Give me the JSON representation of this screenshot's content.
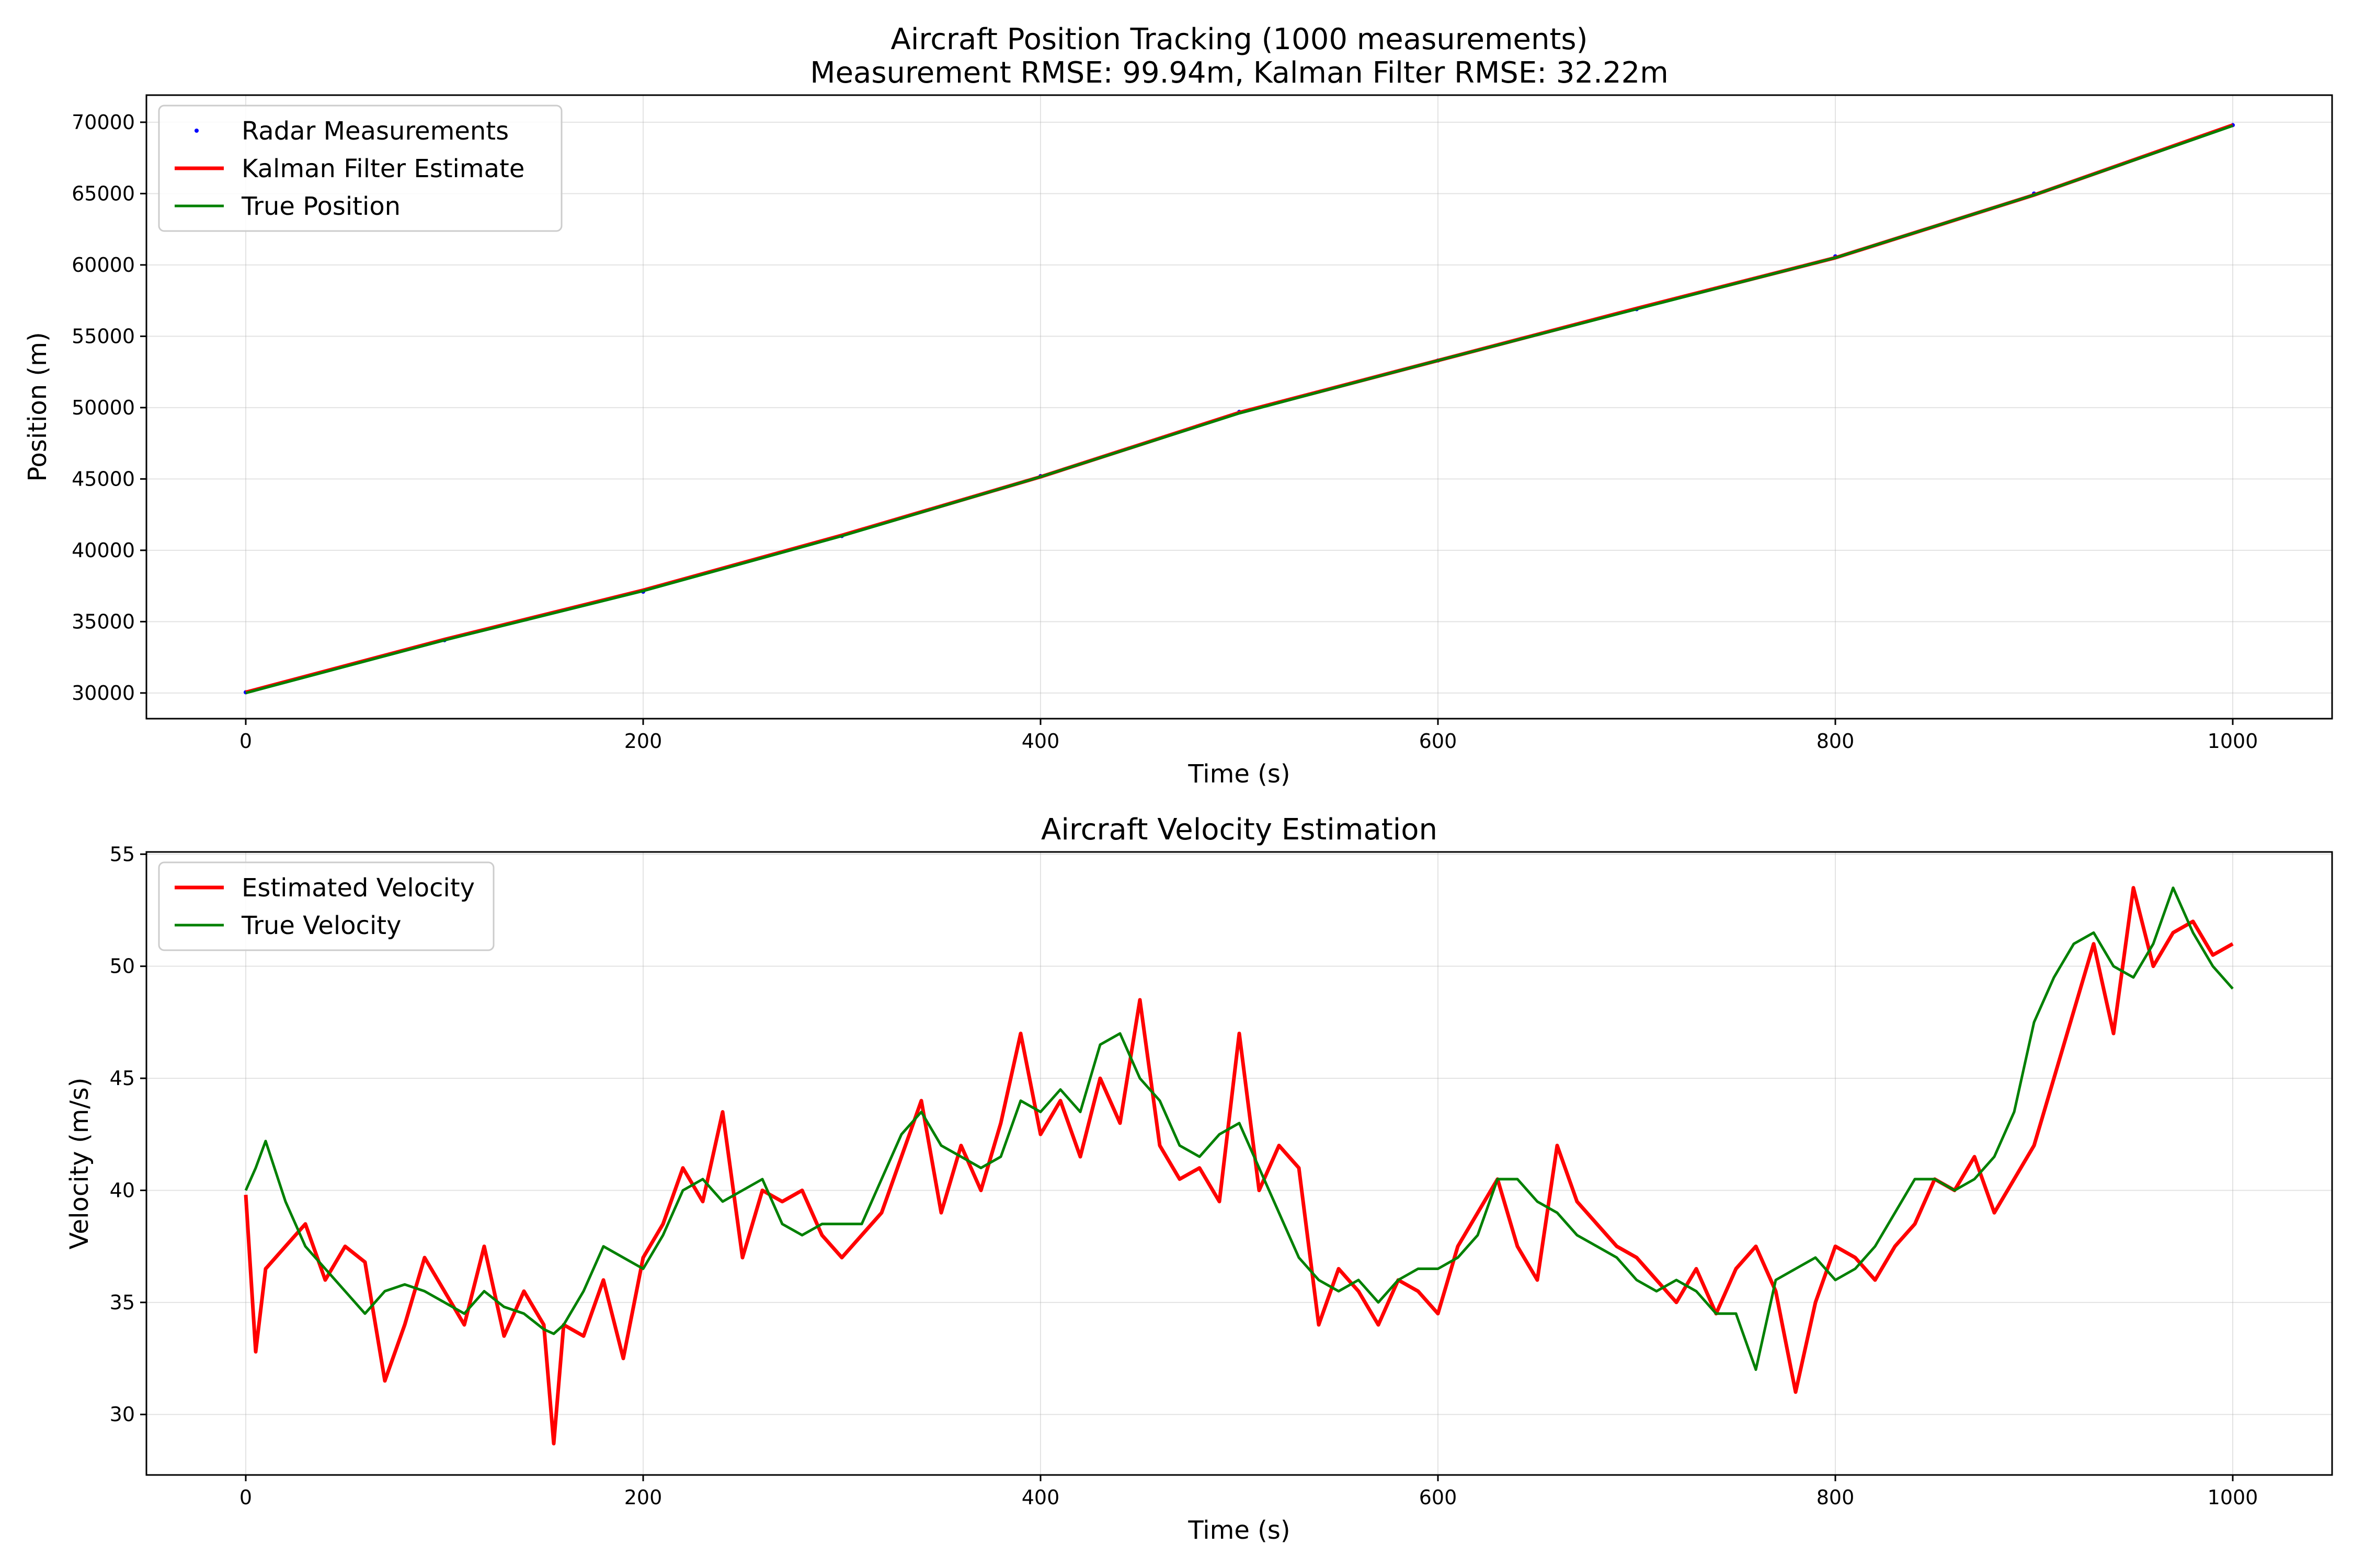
{
  "chart_data": [
    {
      "type": "line",
      "title": "Aircraft Position Tracking (1000 measurements)",
      "subtitle": "Measurement RMSE: 99.94m, Kalman Filter RMSE: 32.22m",
      "xlabel": "Time (s)",
      "ylabel": "Position (m)",
      "xlim": [
        -50,
        1050
      ],
      "ylim": [
        28200,
        71900
      ],
      "xticks": [
        0,
        200,
        400,
        600,
        800,
        1000
      ],
      "yticks": [
        30000,
        35000,
        40000,
        45000,
        50000,
        55000,
        60000,
        65000,
        70000
      ],
      "grid": true,
      "legend_position": "top-left",
      "x": [
        0,
        100,
        200,
        300,
        400,
        500,
        600,
        700,
        800,
        900,
        1000
      ],
      "series": [
        {
          "name": "Radar Measurements",
          "style": "points",
          "color": "#0000ff",
          "values": [
            30050,
            33700,
            37100,
            41000,
            45200,
            49700,
            53300,
            56900,
            60600,
            65000,
            69800
          ]
        },
        {
          "name": "Kalman Filter Estimate",
          "style": "line",
          "color": "#ff0000",
          "values": [
            30050,
            33750,
            37200,
            41050,
            45150,
            49650,
            53300,
            56950,
            60500,
            64900,
            69800
          ]
        },
        {
          "name": "True Position",
          "style": "line",
          "color": "#008000",
          "values": [
            30000,
            33700,
            37150,
            41000,
            45150,
            49600,
            53300,
            56900,
            60500,
            64900,
            69750
          ]
        }
      ]
    },
    {
      "type": "line",
      "title": "Aircraft Velocity Estimation",
      "xlabel": "Time (s)",
      "ylabel": "Velocity (m/s)",
      "xlim": [
        -50,
        1050
      ],
      "ylim": [
        27.3,
        55.1
      ],
      "xticks": [
        0,
        200,
        400,
        600,
        800,
        1000
      ],
      "yticks": [
        30,
        35,
        40,
        45,
        50,
        55
      ],
      "grid": true,
      "legend_position": "top-left",
      "x": [
        0,
        5,
        10,
        20,
        30,
        40,
        50,
        60,
        70,
        80,
        90,
        100,
        110,
        120,
        130,
        140,
        150,
        155,
        160,
        170,
        180,
        190,
        200,
        210,
        220,
        230,
        240,
        250,
        260,
        270,
        280,
        290,
        300,
        310,
        320,
        330,
        340,
        350,
        360,
        370,
        380,
        390,
        400,
        410,
        420,
        430,
        440,
        450,
        460,
        470,
        480,
        490,
        500,
        510,
        520,
        530,
        540,
        550,
        560,
        570,
        580,
        590,
        600,
        610,
        620,
        630,
        640,
        650,
        660,
        670,
        680,
        690,
        700,
        710,
        720,
        730,
        740,
        750,
        760,
        770,
        780,
        790,
        800,
        810,
        820,
        830,
        840,
        850,
        860,
        870,
        880,
        890,
        900,
        910,
        920,
        930,
        940,
        950,
        960,
        970,
        980,
        990,
        1000
      ],
      "series": [
        {
          "name": "Estimated Velocity",
          "color": "#ff0000",
          "values": [
            39.8,
            32.8,
            36.5,
            37.5,
            38.5,
            36.0,
            37.5,
            36.8,
            31.5,
            34.0,
            37.0,
            35.5,
            34.0,
            37.5,
            33.5,
            35.5,
            34.0,
            28.7,
            34.0,
            33.5,
            36.0,
            32.5,
            37.0,
            38.5,
            41.0,
            39.5,
            43.5,
            37.0,
            40.0,
            39.5,
            40.0,
            38.0,
            37.0,
            38.0,
            39.0,
            41.5,
            44.0,
            39.0,
            42.0,
            40.0,
            43.0,
            47.0,
            42.5,
            44.0,
            41.5,
            45.0,
            43.0,
            48.5,
            42.0,
            40.5,
            41.0,
            39.5,
            47.0,
            40.0,
            42.0,
            41.0,
            34.0,
            36.5,
            35.5,
            34.0,
            36.0,
            35.5,
            34.5,
            37.5,
            39.0,
            40.5,
            37.5,
            36.0,
            42.0,
            39.5,
            38.5,
            37.5,
            37.0,
            36.0,
            35.0,
            36.5,
            34.5,
            36.5,
            37.5,
            35.5,
            31.0,
            35.0,
            37.5,
            37.0,
            36.0,
            37.5,
            38.5,
            40.5,
            40.0,
            41.5,
            39.0,
            40.5,
            42.0,
            45.0,
            48.0,
            51.0,
            47.0,
            53.5,
            50.0,
            51.5,
            52.0,
            50.5,
            51.0
          ]
        },
        {
          "name": "True Velocity",
          "color": "#008000",
          "values": [
            40.0,
            41.0,
            42.2,
            39.5,
            37.5,
            36.5,
            35.5,
            34.5,
            35.5,
            35.8,
            35.5,
            35.0,
            34.5,
            35.5,
            34.8,
            34.5,
            33.8,
            33.6,
            34.0,
            35.5,
            37.5,
            37.0,
            36.5,
            38.0,
            40.0,
            40.5,
            39.5,
            40.0,
            40.5,
            38.5,
            38.0,
            38.5,
            38.5,
            38.5,
            40.5,
            42.5,
            43.5,
            42.0,
            41.5,
            41.0,
            41.5,
            44.0,
            43.5,
            44.5,
            43.5,
            46.5,
            47.0,
            45.0,
            44.0,
            42.0,
            41.5,
            42.5,
            43.0,
            41.0,
            39.0,
            37.0,
            36.0,
            35.5,
            36.0,
            35.0,
            36.0,
            36.5,
            36.5,
            37.0,
            38.0,
            40.5,
            40.5,
            39.5,
            39.0,
            38.0,
            37.5,
            37.0,
            36.0,
            35.5,
            36.0,
            35.5,
            34.5,
            34.5,
            32.0,
            36.0,
            36.5,
            37.0,
            36.0,
            36.5,
            37.5,
            39.0,
            40.5,
            40.5,
            40.0,
            40.5,
            41.5,
            43.5,
            47.5,
            49.5,
            51.0,
            51.5,
            50.0,
            49.5,
            51.0,
            53.5,
            51.5,
            50.0,
            49.0
          ]
        }
      ]
    }
  ]
}
